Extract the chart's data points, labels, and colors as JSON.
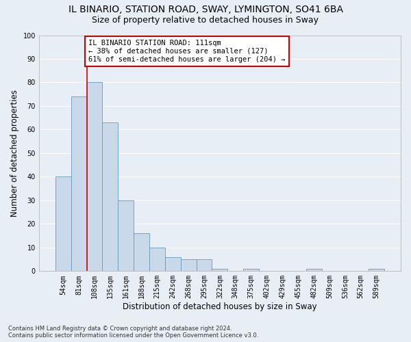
{
  "title": "IL BINARIO, STATION ROAD, SWAY, LYMINGTON, SO41 6BA",
  "subtitle": "Size of property relative to detached houses in Sway",
  "xlabel": "Distribution of detached houses by size in Sway",
  "ylabel": "Number of detached properties",
  "footer_line1": "Contains HM Land Registry data © Crown copyright and database right 2024.",
  "footer_line2": "Contains public sector information licensed under the Open Government Licence v3.0.",
  "categories": [
    "54sqm",
    "81sqm",
    "108sqm",
    "135sqm",
    "161sqm",
    "188sqm",
    "215sqm",
    "242sqm",
    "268sqm",
    "295sqm",
    "322sqm",
    "348sqm",
    "375sqm",
    "402sqm",
    "429sqm",
    "455sqm",
    "482sqm",
    "509sqm",
    "536sqm",
    "562sqm",
    "589sqm"
  ],
  "values": [
    40,
    74,
    80,
    63,
    30,
    16,
    10,
    6,
    5,
    5,
    1,
    0,
    1,
    0,
    0,
    0,
    1,
    0,
    0,
    0,
    1
  ],
  "bar_color": "#c9d9ea",
  "bar_edge_color": "#6699bb",
  "annotation_box_text": "IL BINARIO STATION ROAD: 111sqm\n← 38% of detached houses are smaller (127)\n61% of semi-detached houses are larger (204) →",
  "annotation_box_color": "#ffffff",
  "annotation_box_edge_color": "#cc0000",
  "vline_color": "#cc0000",
  "ylim": [
    0,
    100
  ],
  "yticks": [
    0,
    10,
    20,
    30,
    40,
    50,
    60,
    70,
    80,
    90,
    100
  ],
  "bg_color": "#e8eef5",
  "plot_bg_color": "#e8eef5",
  "grid_color": "#ffffff",
  "title_fontsize": 10,
  "subtitle_fontsize": 9,
  "xlabel_fontsize": 8.5,
  "ylabel_fontsize": 8.5,
  "tick_fontsize": 7,
  "annot_fontsize": 7.5,
  "footer_fontsize": 6
}
